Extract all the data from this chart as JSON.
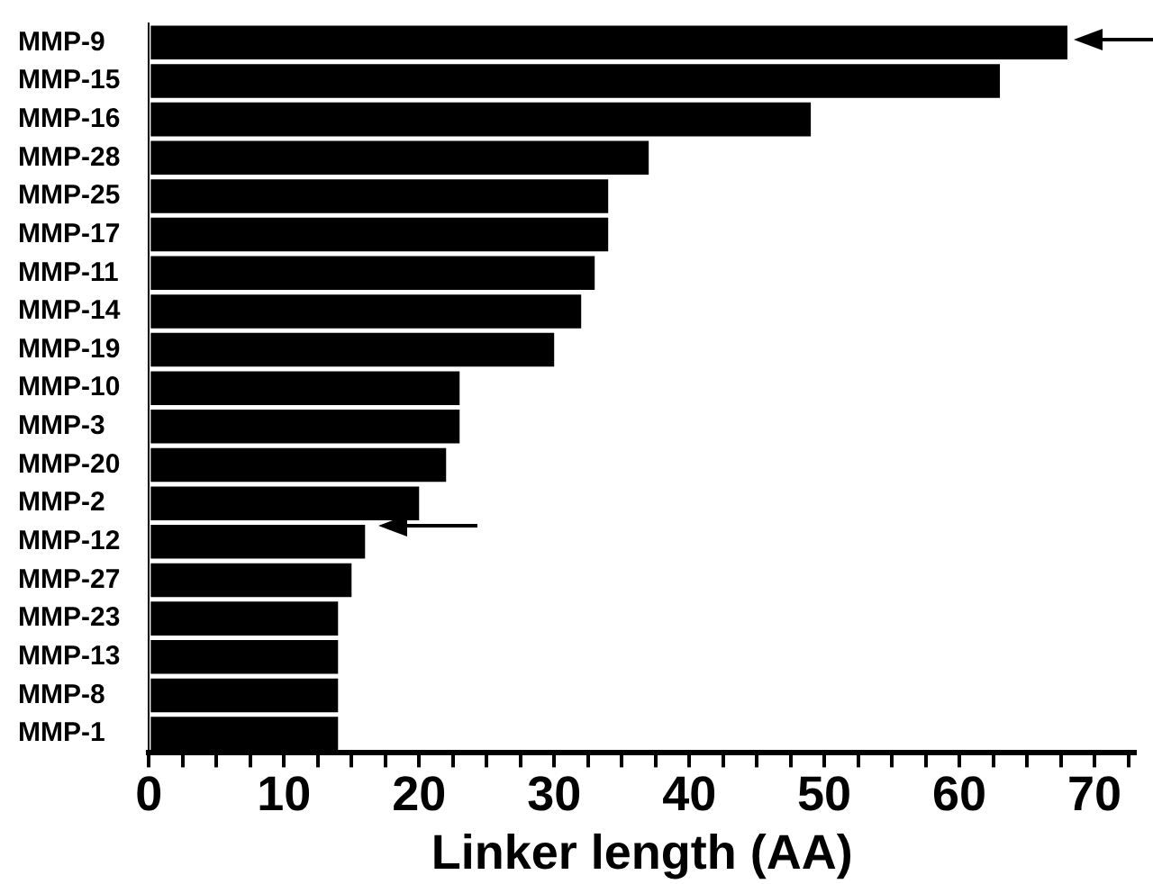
{
  "chart_data": {
    "type": "bar",
    "orientation": "horizontal",
    "xlabel": "Linker length (AA)",
    "categories": [
      "MMP-9",
      "MMP-15",
      "MMP-16",
      "MMP-28",
      "MMP-25",
      "MMP-17",
      "MMP-11",
      "MMP-14",
      "MMP-19",
      "MMP-10",
      "MMP-3",
      "MMP-20",
      "MMP-2",
      "MMP-12",
      "MMP-27",
      "MMP-23",
      "MMP-13",
      "MMP-8",
      "MMP-1"
    ],
    "values": [
      68,
      63,
      49,
      37,
      34,
      34,
      33,
      32,
      30,
      23,
      23,
      22,
      20,
      16,
      15,
      14,
      14,
      14,
      14
    ],
    "color": "#000000",
    "xlim": [
      0,
      73
    ],
    "xticks": [
      0,
      {
        "value": 2.5,
        "label": null
      },
      {
        "value": 5,
        "label": null
      },
      {
        "value": 7.5,
        "label": null
      },
      10,
      {
        "value": 12.5,
        "label": null
      },
      {
        "value": 15,
        "label": null
      },
      {
        "value": 17.5,
        "label": null
      },
      20,
      {
        "value": 22.5,
        "label": null
      },
      {
        "value": 25,
        "label": null
      },
      {
        "value": 27.5,
        "label": null
      },
      30,
      {
        "value": 32.5,
        "label": null
      },
      {
        "value": 35,
        "label": null
      },
      {
        "value": 37.5,
        "label": null
      },
      40,
      {
        "value": 42.5,
        "label": null
      },
      {
        "value": 45,
        "label": null
      },
      {
        "value": 47.5,
        "label": null
      },
      50,
      {
        "value": 52.5,
        "label": null
      },
      {
        "value": 55,
        "label": null
      },
      {
        "value": 57.5,
        "label": null
      },
      60,
      {
        "value": 62.5,
        "label": null
      },
      {
        "value": 65,
        "label": null
      },
      {
        "value": 67.5,
        "label": null
      },
      70,
      {
        "value": 72.5,
        "label": null
      }
    ],
    "grid": false,
    "legend": false
  }
}
